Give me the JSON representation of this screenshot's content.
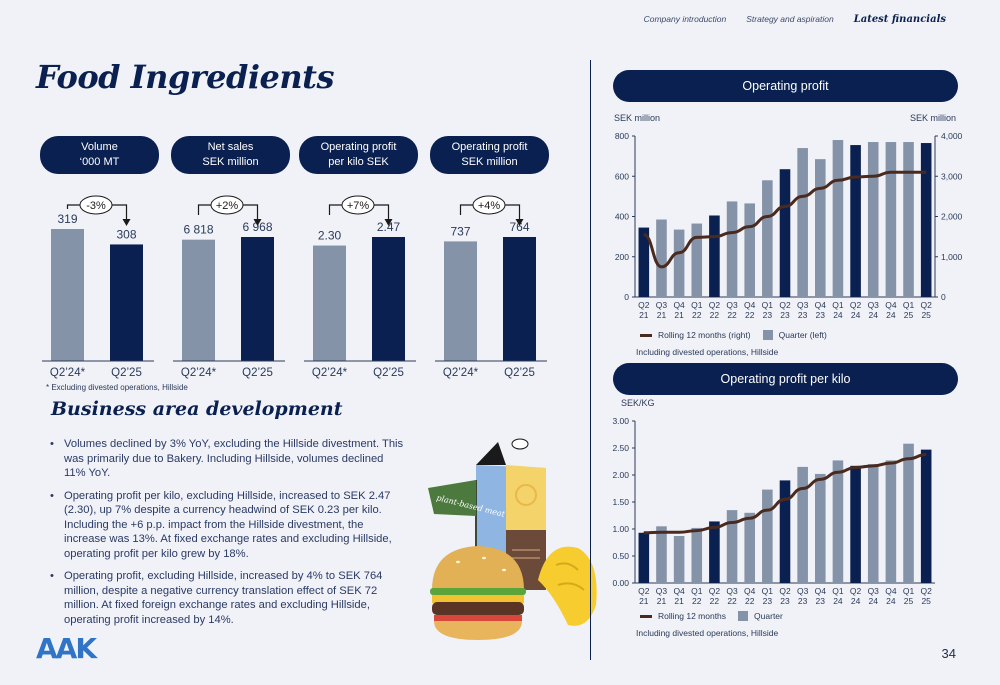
{
  "nav": {
    "items": [
      "Company introduction",
      "Strategy and aspiration",
      "Latest financials"
    ],
    "active": "Latest financials"
  },
  "page_title": "Food Ingredients",
  "footnote": "* Excluding divested operations, Hillside",
  "subtitle": "Business area development",
  "bullets": [
    "Volumes declined by 3% YoY, excluding the Hillside divestment. This was primarily due to Bakery. Including Hillside, volumes declined 11% YoY.",
    "Operating profit per kilo, excluding Hillside, increased to SEK 2.47 (2.30), up 7% despite a currency headwind of SEK 0.23 per kilo. Including the +6 p.p. impact from the Hillside divestment, the increase was 13%. At fixed exchange rates and excluding Hillside, operating profit per kilo grew by 18%.",
    "Operating profit, excluding Hillside, increased by 4% to SEK 764 million, despite a negative currency translation effect of SEK 72 million. At fixed foreign exchange rates and excluding Hillside, operating profit increased by 14%."
  ],
  "logo": "AAK",
  "page_number": "34",
  "illustration_text": "plant-based meat",
  "colors": {
    "navy": "#0a2050",
    "grey_bar": "#8593a8",
    "rolling_line": "#4a2a1e",
    "background": "#f1f2f7",
    "logo_blue": "#2f74c6"
  },
  "kpis": [
    {
      "line1": "Volume",
      "line2": "‘000 MT",
      "change": "-3%",
      "direction": "down",
      "prev": {
        "label": "Q2’24*",
        "value": 319,
        "display": "319"
      },
      "curr": {
        "label": "Q2’25",
        "value": 308,
        "display": "308"
      }
    },
    {
      "line1": "Net sales",
      "line2": "SEK million",
      "change": "+2%",
      "direction": "up",
      "prev": {
        "label": "Q2’24*",
        "value": 6818,
        "display": "6 818"
      },
      "curr": {
        "label": "Q2’25",
        "value": 6968,
        "display": "6 968"
      }
    },
    {
      "line1": "Operating profit",
      "line2": "per kilo SEK",
      "change": "+7%",
      "direction": "up",
      "prev": {
        "label": "Q2’24*",
        "value": 2.3,
        "display": "2.30"
      },
      "curr": {
        "label": "Q2’25",
        "value": 2.47,
        "display": "2.47"
      }
    },
    {
      "line1": "Operating profit",
      "line2": "SEK million",
      "change": "+4%",
      "direction": "up",
      "prev": {
        "label": "Q2’24*",
        "value": 737,
        "display": "737"
      },
      "curr": {
        "label": "Q2’25",
        "value": 764,
        "display": "764"
      }
    }
  ],
  "chart_data": [
    {
      "type": "bar",
      "title": "Operating profit",
      "ylabel_left": "SEK million",
      "ylabel_right": "SEK million",
      "categories": [
        [
          "Q2",
          "21"
        ],
        [
          "Q3",
          "21"
        ],
        [
          "Q4",
          "21"
        ],
        [
          "Q1",
          "22"
        ],
        [
          "Q2",
          "22"
        ],
        [
          "Q3",
          "22"
        ],
        [
          "Q4",
          "22"
        ],
        [
          "Q1",
          "23"
        ],
        [
          "Q2",
          "23"
        ],
        [
          "Q3",
          "23"
        ],
        [
          "Q4",
          "23"
        ],
        [
          "Q1",
          "24"
        ],
        [
          "Q2",
          "24"
        ],
        [
          "Q3",
          "24"
        ],
        [
          "Q4",
          "24"
        ],
        [
          "Q1",
          "25"
        ],
        [
          "Q2",
          "25"
        ]
      ],
      "highlight": [
        0,
        4,
        8,
        12,
        16
      ],
      "series": [
        {
          "name": "Quarter (left)",
          "axis": "left",
          "values": [
            345,
            385,
            335,
            365,
            405,
            475,
            465,
            580,
            635,
            740,
            685,
            780,
            755,
            770,
            770,
            770,
            765
          ]
        },
        {
          "name": "Rolling 12 months (right)",
          "axis": "right",
          "type": "line",
          "values": [
            1550,
            750,
            1100,
            1480,
            1500,
            1600,
            1750,
            2000,
            2250,
            2500,
            2700,
            2900,
            2980,
            3000,
            3100,
            3100,
            3100
          ]
        }
      ],
      "ylim_left": [
        0,
        800
      ],
      "yticks_left": [
        0,
        200,
        400,
        600,
        800
      ],
      "ylim_right": [
        0,
        4000
      ],
      "yticks_right": [
        "0",
        "1,000",
        "2,000",
        "3,000",
        "4,000"
      ],
      "note": "Including divested operations, Hillside"
    },
    {
      "type": "bar",
      "title": "Operating profit per kilo",
      "ylabel": "SEK/KG",
      "categories": [
        [
          "Q2",
          "21"
        ],
        [
          "Q3",
          "21"
        ],
        [
          "Q4",
          "21"
        ],
        [
          "Q1",
          "22"
        ],
        [
          "Q2",
          "22"
        ],
        [
          "Q3",
          "22"
        ],
        [
          "Q4",
          "22"
        ],
        [
          "Q1",
          "23"
        ],
        [
          "Q2",
          "23"
        ],
        [
          "Q3",
          "23"
        ],
        [
          "Q4",
          "23"
        ],
        [
          "Q1",
          "24"
        ],
        [
          "Q2",
          "24"
        ],
        [
          "Q3",
          "24"
        ],
        [
          "Q4",
          "24"
        ],
        [
          "Q1",
          "25"
        ],
        [
          "Q2",
          "25"
        ]
      ],
      "highlight": [
        0,
        4,
        8,
        12,
        16
      ],
      "series": [
        {
          "name": "Quarter",
          "values": [
            0.93,
            1.05,
            0.87,
            1.02,
            1.14,
            1.35,
            1.3,
            1.73,
            1.9,
            2.15,
            2.02,
            2.27,
            2.17,
            2.2,
            2.27,
            2.58,
            2.47
          ]
        },
        {
          "name": "Rolling 12 months",
          "type": "line",
          "values": [
            0.93,
            0.94,
            0.94,
            0.97,
            1.03,
            1.12,
            1.2,
            1.35,
            1.55,
            1.75,
            1.92,
            2.05,
            2.14,
            2.17,
            2.22,
            2.3,
            2.38
          ]
        }
      ],
      "ylim": [
        0,
        3
      ],
      "yticks": [
        "0.00",
        "0.50",
        "1.00",
        "1.50",
        "2.00",
        "2.50",
        "3.00"
      ],
      "note": "Including divested operations, Hillside"
    }
  ]
}
